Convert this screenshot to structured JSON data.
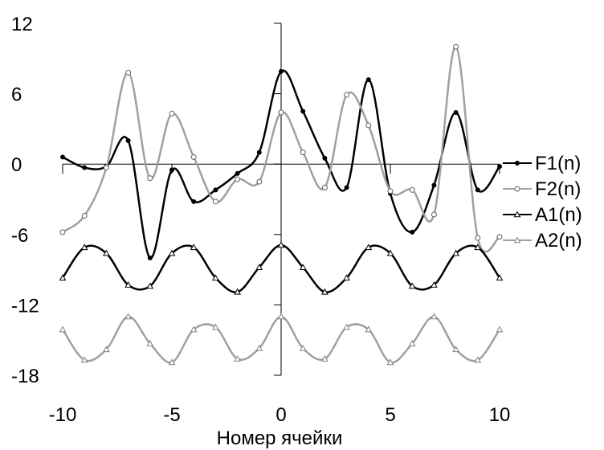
{
  "chart_data": {
    "type": "line",
    "title": "",
    "xlabel": "Номер ячейки",
    "ylabel": "",
    "xlim": [
      -10,
      10
    ],
    "ylim": [
      -18,
      12
    ],
    "xticks": [
      -10,
      -5,
      0,
      5,
      10
    ],
    "yticks": [
      12,
      6,
      0,
      -6,
      -12,
      -18
    ],
    "grid": false,
    "legend_position": "right",
    "series": [
      {
        "name": "F1(n)",
        "color": "#000000",
        "marker": "dot",
        "x": [
          -10,
          -9,
          -8,
          -7,
          -6,
          -5,
          -4,
          -3,
          -2,
          -1,
          0,
          1,
          2,
          3,
          4,
          5,
          6,
          7,
          8,
          9,
          10
        ],
        "values": [
          0.6,
          -0.3,
          -0.2,
          2.0,
          -8.0,
          -0.5,
          -3.2,
          -2.2,
          -0.8,
          1.0,
          7.9,
          4.5,
          0.5,
          -2.0,
          7.2,
          -2.5,
          -5.8,
          -1.8,
          4.4,
          -2.2,
          -0.2
        ]
      },
      {
        "name": "F2(n)",
        "color": "#a0a0a0",
        "marker": "circle",
        "x": [
          -10,
          -9,
          -8,
          -7,
          -6,
          -5,
          -4,
          -3,
          -2,
          -1,
          0,
          1,
          2,
          3,
          4,
          5,
          6,
          7,
          8,
          9,
          10
        ],
        "values": [
          -5.8,
          -4.4,
          -0.3,
          7.8,
          -1.2,
          4.3,
          0.6,
          -3.2,
          -1.3,
          -1.5,
          4.4,
          1.0,
          -2.0,
          5.9,
          3.3,
          -2.3,
          -2.2,
          -4.3,
          10.0,
          -6.3,
          -6.2
        ]
      },
      {
        "name": "A1(n)",
        "color": "#000000",
        "marker": "triangle",
        "x": [
          -10,
          -9,
          -8,
          -7,
          -6,
          -5,
          -4,
          -3,
          -2,
          -1,
          0,
          1,
          2,
          3,
          4,
          5,
          6,
          7,
          8,
          9,
          10
        ],
        "values": [
          -9.7,
          -7.1,
          -7.6,
          -10.3,
          -10.4,
          -7.6,
          -7.1,
          -9.7,
          -10.9,
          -8.8,
          -6.9,
          -8.8,
          -10.9,
          -9.7,
          -7.1,
          -7.6,
          -10.4,
          -10.3,
          -7.6,
          -7.1,
          -9.7
        ]
      },
      {
        "name": "A2(n)",
        "color": "#a0a0a0",
        "marker": "triangle",
        "x": [
          -10,
          -9,
          -8,
          -7,
          -6,
          -5,
          -4,
          -3,
          -2,
          -1,
          0,
          1,
          2,
          3,
          4,
          5,
          6,
          7,
          8,
          9,
          10
        ],
        "values": [
          -14.1,
          -16.7,
          -15.8,
          -13.0,
          -15.3,
          -16.9,
          -14.1,
          -13.9,
          -16.6,
          -15.7,
          -13.0,
          -15.7,
          -16.6,
          -13.9,
          -14.1,
          -16.9,
          -15.3,
          -13.0,
          -15.8,
          -16.7,
          -14.1
        ]
      }
    ]
  }
}
